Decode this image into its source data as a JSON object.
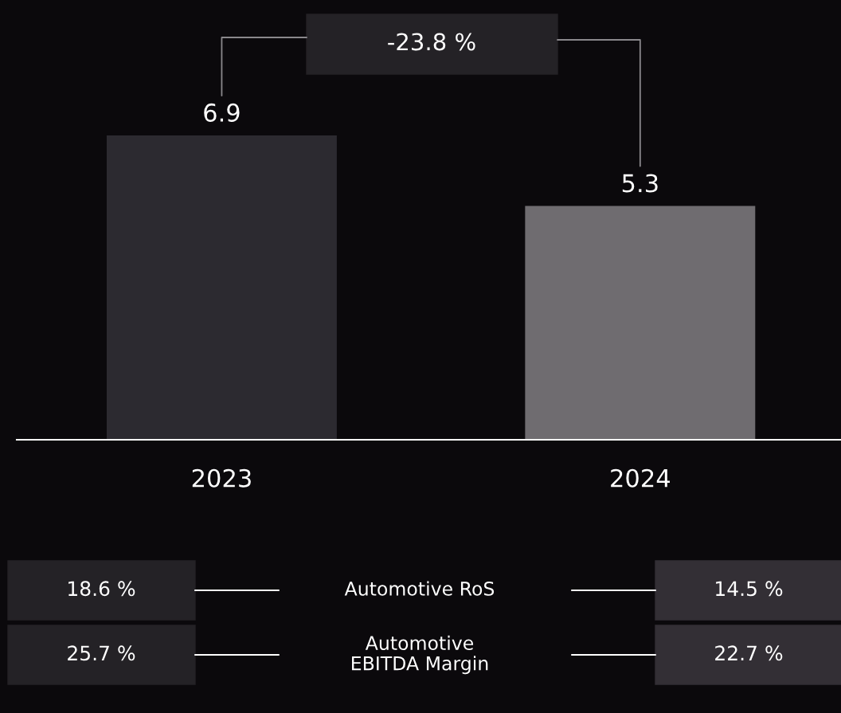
{
  "chart_data": {
    "type": "bar",
    "categories": [
      "2023",
      "2024"
    ],
    "values": [
      6.9,
      5.3
    ],
    "colors": [
      "#2c2a30",
      "#6f6c70"
    ],
    "data_labels": true,
    "legend": false,
    "tick_labels": "x",
    "annotations": [
      "-23.8 %",
      "18.6 %",
      "Automotive RoS",
      "14.5 %",
      "25.7 %",
      "Automotive\nEBITDA Margin",
      "22.7 %"
    ]
  }
}
